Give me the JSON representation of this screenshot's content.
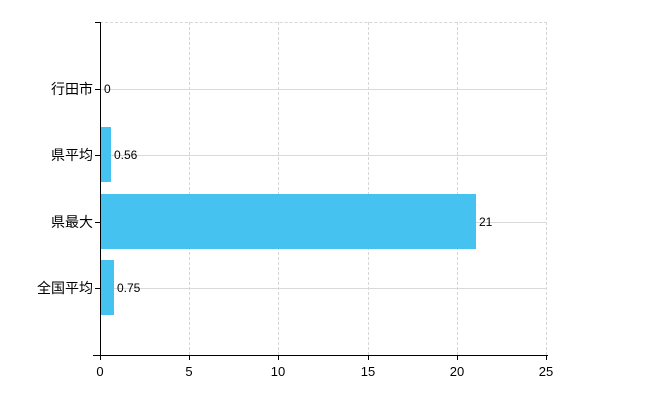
{
  "chart_data": {
    "type": "bar",
    "orientation": "horizontal",
    "title": "",
    "categories": [
      "行田市",
      "県平均",
      "県最大",
      "全国平均"
    ],
    "values": [
      0,
      0.56,
      21,
      0.75
    ],
    "value_labels": [
      "0",
      "0.56",
      "21",
      "0.75"
    ],
    "x_ticks": [
      0,
      5,
      10,
      15,
      20,
      25
    ],
    "x_tick_labels": [
      "0",
      "5",
      "10",
      "15",
      "20",
      "25"
    ],
    "xlim": [
      0,
      25
    ],
    "grid": true,
    "legend": false,
    "colors": {
      "bar": "#45C2F0",
      "grid": "#d9d9d9",
      "axis": "#000000",
      "text": "#000000"
    }
  }
}
